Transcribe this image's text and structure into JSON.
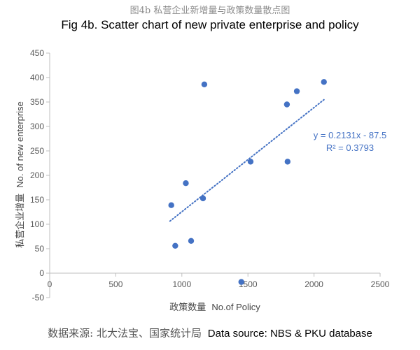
{
  "header": {
    "title_cn": "图4b 私营企业新增量与政策数量散点图",
    "title_en": "Fig 4b. Scatter chart of new private enterprise and policy"
  },
  "footer": {
    "source_cn": "数据来源: 北大法宝、国家统计局",
    "source_en": "Data source: NBS & PKU database"
  },
  "chart_data": {
    "type": "scatter",
    "xlabel_cn": "政策数量",
    "xlabel_en": "No.of Policy",
    "ylabel_cn": "私营企业增量",
    "ylabel_en": "No. of new enterprise",
    "xlim": [
      0,
      2500
    ],
    "ylim": [
      -50,
      450
    ],
    "x_ticks": [
      0,
      500,
      1000,
      1500,
      2000,
      2500
    ],
    "y_ticks": [
      -50,
      0,
      50,
      100,
      150,
      200,
      250,
      300,
      350,
      400,
      450
    ],
    "grid": false,
    "points": [
      {
        "x": 920,
        "y": 139
      },
      {
        "x": 950,
        "y": 56
      },
      {
        "x": 1030,
        "y": 184
      },
      {
        "x": 1070,
        "y": 66
      },
      {
        "x": 1160,
        "y": 153
      },
      {
        "x": 1170,
        "y": 386
      },
      {
        "x": 1450,
        "y": -18
      },
      {
        "x": 1520,
        "y": 228
      },
      {
        "x": 1795,
        "y": 345
      },
      {
        "x": 1800,
        "y": 228
      },
      {
        "x": 1870,
        "y": 372
      },
      {
        "x": 2075,
        "y": 391
      }
    ],
    "trendline": {
      "type": "linear",
      "slope": 0.2131,
      "intercept": -87.5,
      "x_range": [
        910,
        2075
      ],
      "equation": "y = 0.2131x - 87.5",
      "r_squared": "R² = 0.3793"
    },
    "colors": {
      "point": "#4472c4",
      "trendline": "#4472c4",
      "annotation": "#4472c4",
      "axis": "#bfbfbf",
      "tick_label": "#595959"
    }
  }
}
